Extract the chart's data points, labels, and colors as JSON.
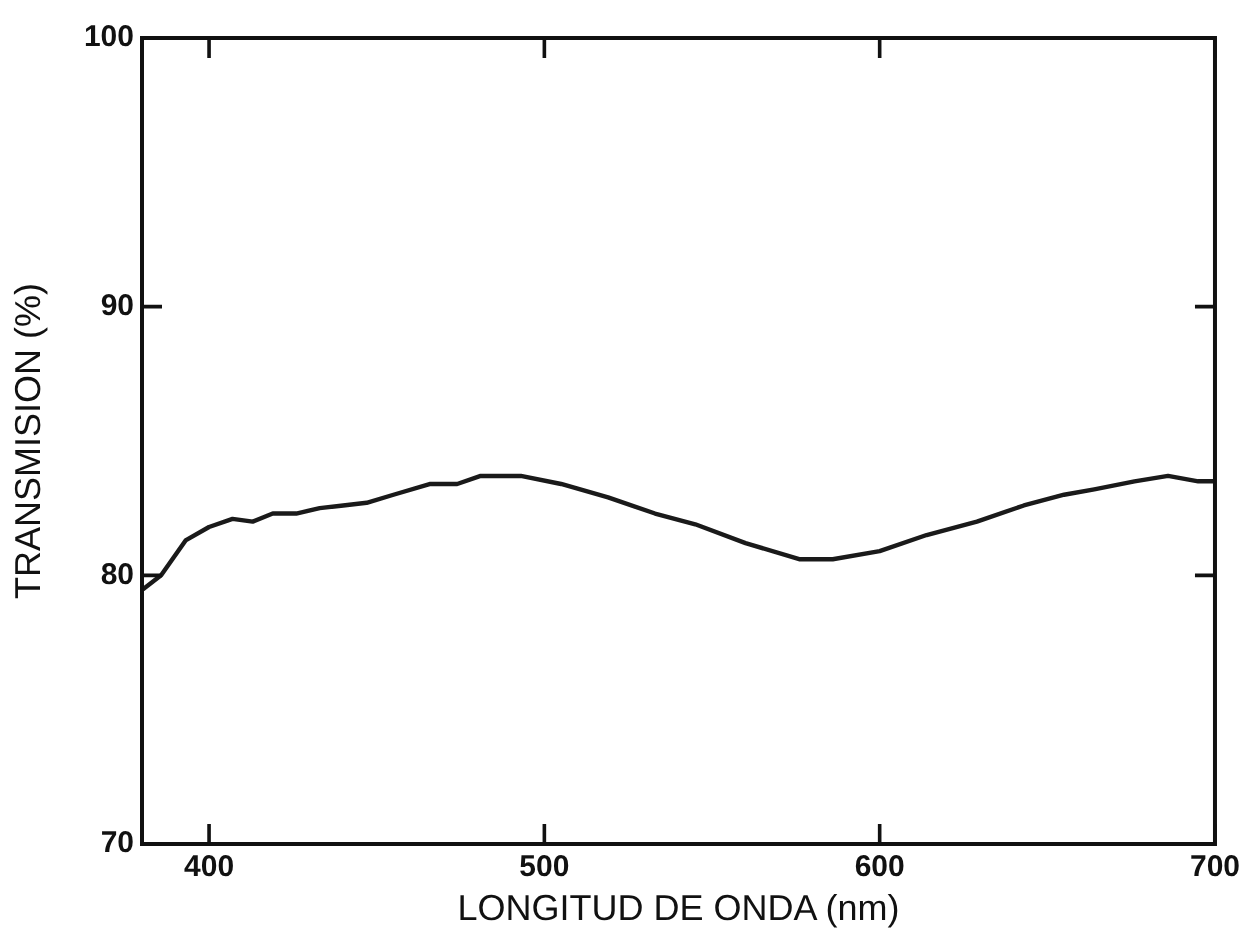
{
  "chart_data": {
    "type": "line",
    "xlabel": "LONGITUD DE ONDA (nm)",
    "ylabel": "TRANSMISION (%)",
    "x": [
      380.5,
      385.7,
      393,
      400,
      407,
      413,
      419,
      426,
      433,
      440,
      447,
      455,
      466,
      474,
      481,
      493,
      505,
      519,
      533,
      545,
      560,
      576,
      586,
      600,
      614,
      629,
      643,
      655,
      664,
      676,
      686,
      695,
      700
    ],
    "series": [
      {
        "color": "#1a1a1a",
        "values": [
          79.5,
          80.0,
          81.3,
          81.8,
          82.1,
          82.0,
          82.3,
          82.3,
          82.5,
          82.6,
          82.7,
          83.0,
          83.4,
          83.4,
          83.7,
          83.7,
          83.4,
          82.9,
          82.3,
          81.9,
          81.2,
          80.6,
          80.6,
          80.9,
          81.5,
          82.0,
          82.6,
          83.0,
          83.2,
          83.5,
          83.7,
          83.5,
          83.5
        ]
      }
    ],
    "xlim": [
      380,
      700
    ],
    "xticks": [
      400,
      500,
      600,
      700
    ],
    "ylim": [
      70,
      100
    ],
    "yticks": [
      70,
      80,
      90,
      100
    ],
    "grid": false,
    "legend": false,
    "marker": "none",
    "line_style": "solid"
  }
}
